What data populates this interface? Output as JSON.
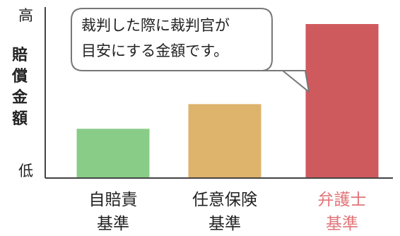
{
  "chart_data": {
    "type": "bar",
    "y_label": "賠償金額",
    "y_ticks": {
      "high": "高",
      "low": "低"
    },
    "ylim": [
      0,
      10
    ],
    "categories": [
      {
        "line1": "自賠責",
        "line2": "基準",
        "color": "#88cc88",
        "label_color": "#222222"
      },
      {
        "line1": "任意保険",
        "line2": "基準",
        "color": "#deb36b",
        "label_color": "#222222"
      },
      {
        "line1": "弁護士",
        "line2": "基準",
        "color": "#cf5a5e",
        "label_color": "#e07579"
      }
    ],
    "values": [
      3.2,
      4.8,
      10.0
    ],
    "annotation": {
      "line1": "裁判した際に裁判官が",
      "line2": "目安にする金額です。"
    }
  }
}
